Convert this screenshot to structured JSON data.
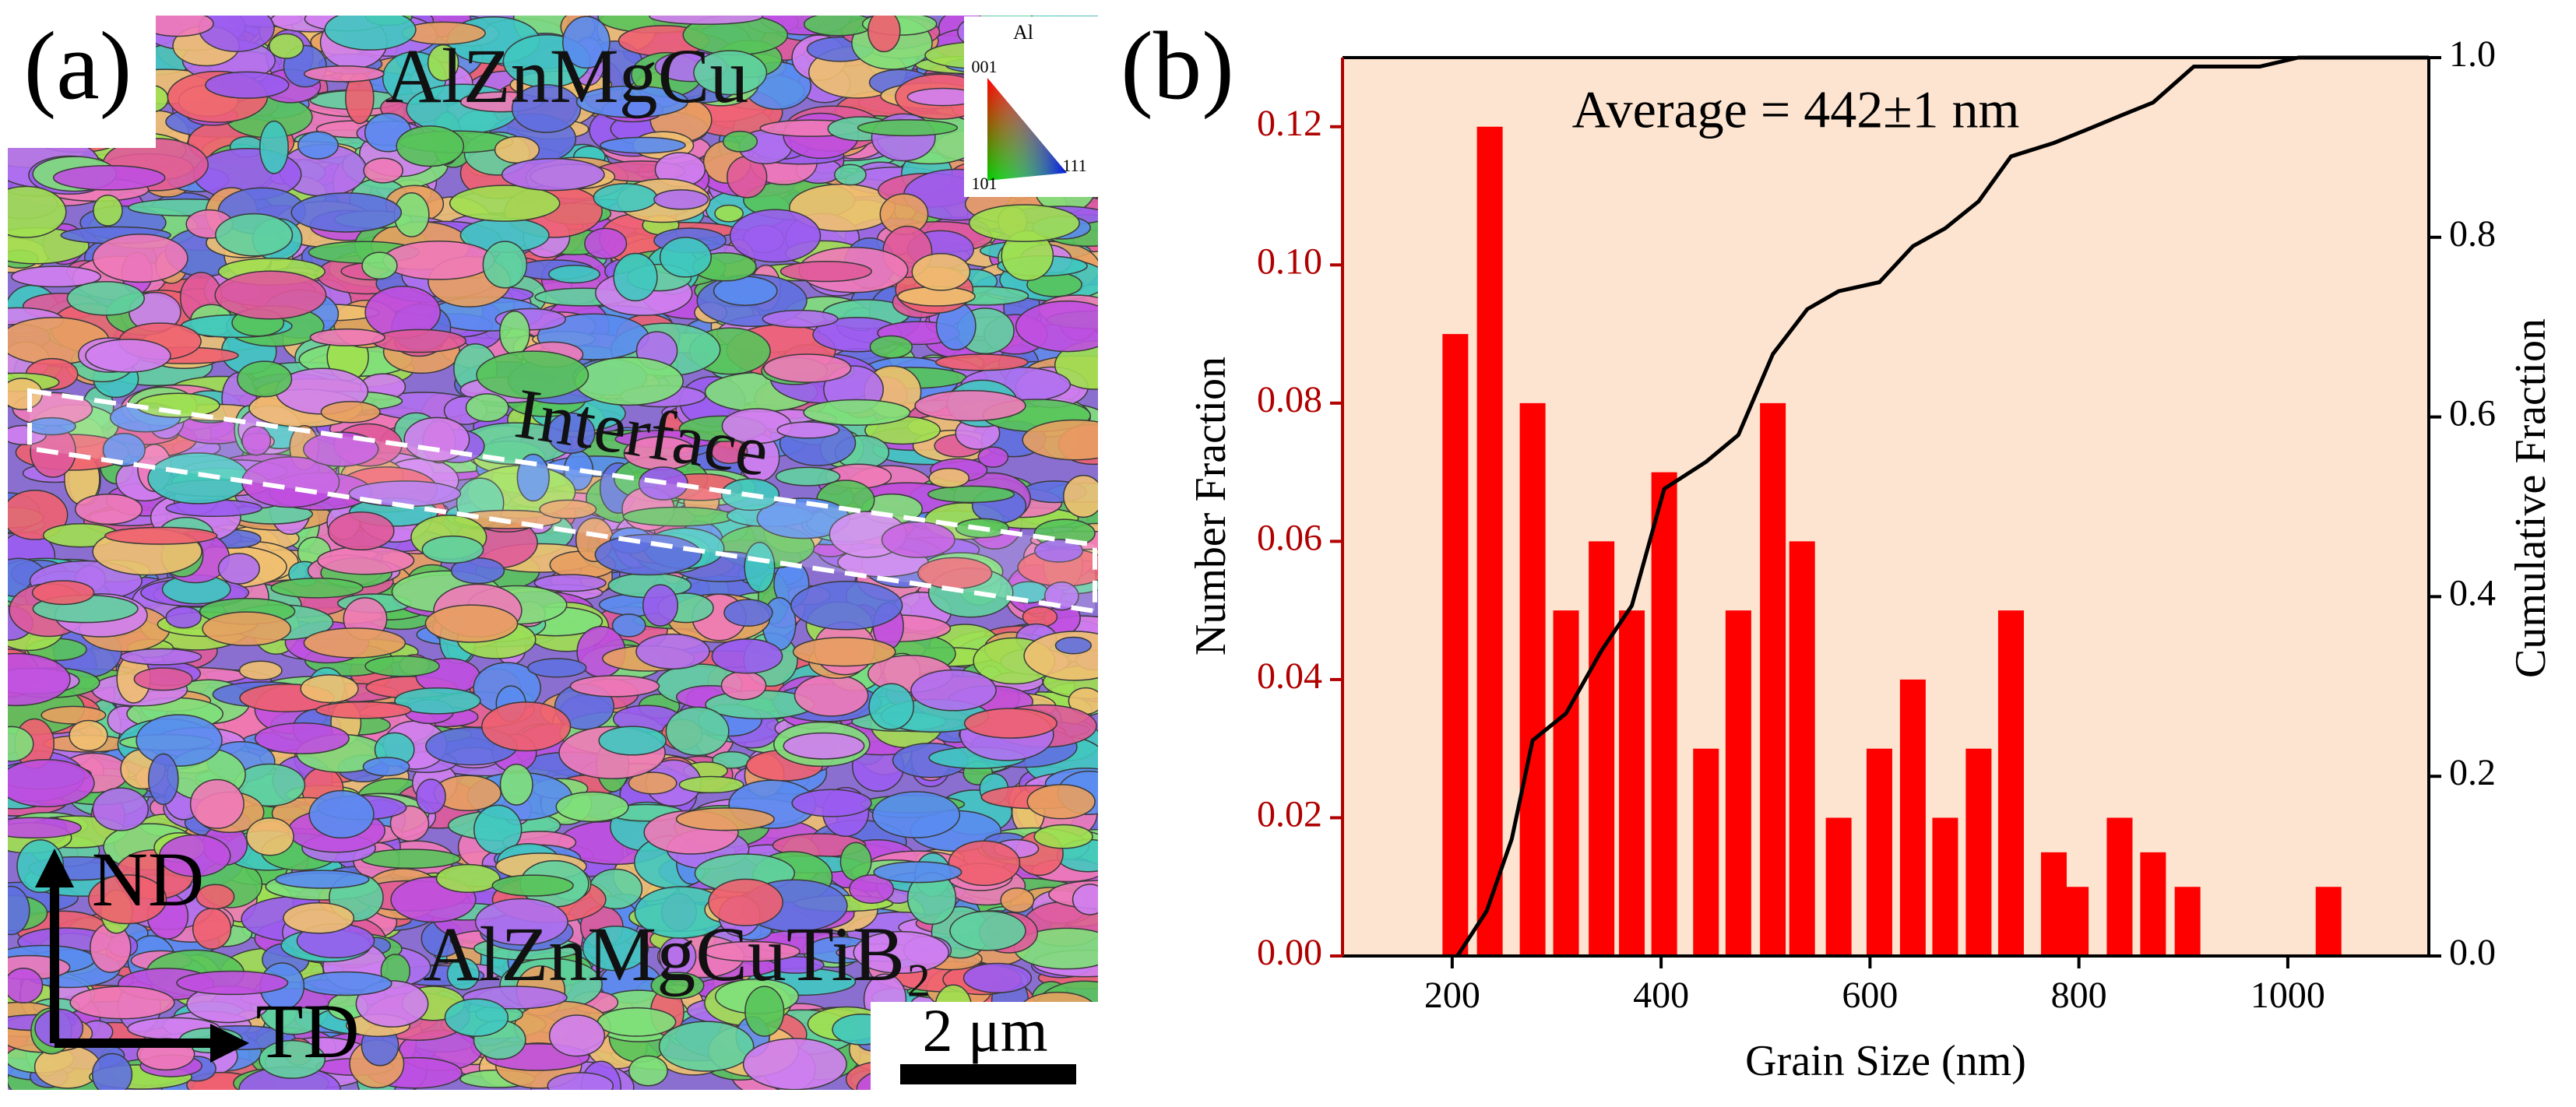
{
  "image_panel": {
    "panel_label": "(a)",
    "top_label": "AlZnMgCu",
    "interface_label": "Interface",
    "bottom_label": "AlZnMgCuTiB₂",
    "nd_label": "ND",
    "td_label": "TD",
    "scale_label": "2 μm",
    "key_title": "Al",
    "key_001": "001",
    "key_101": "101",
    "key_111": "111"
  },
  "chart_data": {
    "type": "bar",
    "panel_label": "(b)",
    "annotation": "Average = 442±1 nm",
    "xlabel": "Grain Size (nm)",
    "ylabel": "Number Fraction",
    "y2label": "Cumulative Fraction",
    "xlim": [
      95,
      1135
    ],
    "ylim": [
      0,
      0.13
    ],
    "y2lim": [
      0,
      1.0
    ],
    "xticks": [
      200,
      400,
      600,
      800,
      1000
    ],
    "yticks": [
      {
        "value": 0,
        "label": "0.00"
      },
      {
        "value": 0.02,
        "label": "0.02"
      },
      {
        "value": 0.04,
        "label": "0.04"
      },
      {
        "value": 0.06,
        "label": "0.06"
      },
      {
        "value": 0.08,
        "label": "0.08"
      },
      {
        "value": 0.1,
        "label": "0.10"
      },
      {
        "value": 0.12,
        "label": "0.12"
      }
    ],
    "y2ticks": [
      {
        "value": 0,
        "label": "0.0"
      },
      {
        "value": 0.2,
        "label": "0.2"
      },
      {
        "value": 0.4,
        "label": "0.4"
      },
      {
        "value": 0.6,
        "label": "0.6"
      },
      {
        "value": 0.8,
        "label": "0.8"
      },
      {
        "value": 1,
        "label": "1.0"
      }
    ],
    "series": [
      {
        "type": "bar",
        "color": "#ff0000",
        "x": [
          203,
          236,
          277,
          309,
          343,
          372,
          403,
          443,
          474,
          507,
          535,
          570,
          609,
          641,
          672,
          704,
          735,
          776,
          797,
          839,
          871,
          904,
          1039
        ],
        "values": [
          0.09,
          0.12,
          0.08,
          0.05,
          0.06,
          0.05,
          0.07,
          0.03,
          0.05,
          0.08,
          0.06,
          0.02,
          0.03,
          0.04,
          0.02,
          0.03,
          0.05,
          0.015,
          0.01,
          0.02,
          0.015,
          0.01,
          0.01
        ]
      },
      {
        "type": "line",
        "axis": "y2",
        "color": "#000000",
        "x": [
          205,
          233,
          257,
          277,
          309,
          343,
          372,
          403,
          443,
          474,
          507,
          540,
          570,
          609,
          641,
          672,
          704,
          735,
          776,
          808,
          839,
          871,
          910,
          973,
          1010,
          1135
        ],
        "values": [
          0,
          0.05,
          0.13,
          0.24,
          0.27,
          0.34,
          0.39,
          0.52,
          0.55,
          0.58,
          0.67,
          0.72,
          0.74,
          0.75,
          0.79,
          0.81,
          0.84,
          0.89,
          0.905,
          0.92,
          0.935,
          0.95,
          0.99,
          0.99,
          1.0,
          1.0
        ]
      }
    ]
  }
}
